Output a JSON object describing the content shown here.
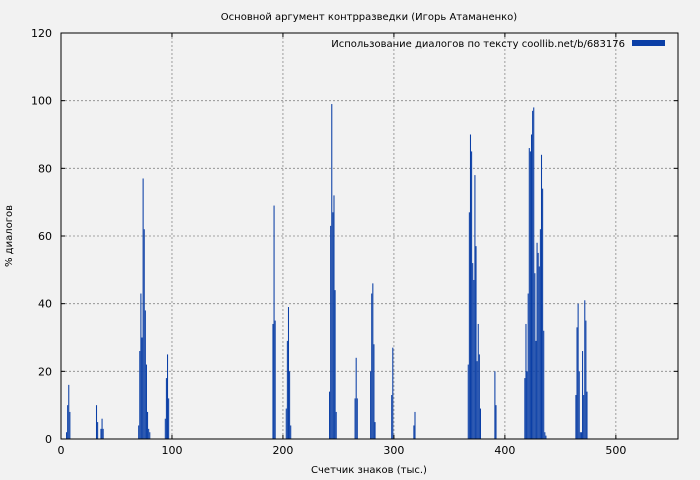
{
  "chart_data": {
    "type": "bar",
    "title": "Основной аргумент контрразведки (Игорь Атаманенко)",
    "xlabel": "Счетчик знаков (тыс.)",
    "ylabel": "% диалогов",
    "xlim": [
      0,
      556
    ],
    "ylim": [
      0,
      120
    ],
    "xticks": [
      "0",
      "100",
      "200",
      "300",
      "400",
      "500"
    ],
    "yticks": [
      "0",
      "20",
      "40",
      "60",
      "80",
      "100",
      "120"
    ],
    "grid": true,
    "legend_position": "top-right",
    "series": [
      {
        "name": "Использование диалогов по тексту coollib.net/b/683176",
        "color": "#0b3fa6",
        "x": [
          5,
          6,
          7,
          8,
          32,
          33,
          36,
          37,
          38,
          70,
          71,
          72,
          73,
          74,
          75,
          76,
          77,
          78,
          79,
          80,
          94,
          95,
          96,
          97,
          191,
          192,
          193,
          203,
          204,
          205,
          206,
          207,
          242,
          243,
          244,
          245,
          246,
          247,
          248,
          265,
          266,
          267,
          279,
          280,
          281,
          282,
          283,
          298,
          299,
          318,
          319,
          367,
          368,
          369,
          370,
          371,
          372,
          373,
          374,
          375,
          376,
          377,
          378,
          391,
          392,
          418,
          419,
          420,
          421,
          422,
          423,
          424,
          425,
          426,
          427,
          428,
          429,
          430,
          431,
          432,
          433,
          434,
          435,
          436,
          437,
          464,
          465,
          466,
          467,
          468,
          469,
          470,
          471,
          472,
          473,
          474
        ],
        "y": [
          2,
          10,
          16,
          8,
          10,
          5,
          3,
          6,
          3,
          4,
          26,
          43,
          30,
          77,
          62,
          38,
          22,
          8,
          3,
          2,
          6,
          18,
          25,
          12,
          34,
          69,
          35,
          9,
          29,
          39,
          20,
          4,
          14,
          63,
          99,
          67,
          72,
          44,
          8,
          12,
          24,
          12,
          20,
          43,
          46,
          28,
          5,
          13,
          27,
          4,
          8,
          22,
          67,
          90,
          85,
          52,
          47,
          78,
          57,
          23,
          34,
          25,
          9,
          20,
          10,
          18,
          34,
          20,
          43,
          86,
          85,
          90,
          97,
          98,
          49,
          29,
          58,
          55,
          51,
          62,
          84,
          74,
          32,
          2,
          1,
          13,
          33,
          40,
          20,
          2,
          2,
          26,
          13,
          41,
          35,
          14
        ]
      }
    ]
  }
}
